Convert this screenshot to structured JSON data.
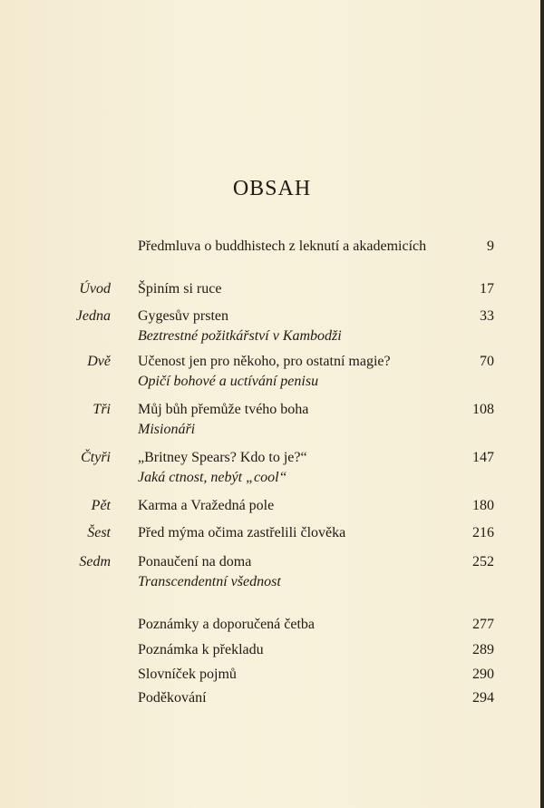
{
  "title": "OBSAH",
  "entries": [
    {
      "label": "",
      "title": "Předmluva o buddhistech z leknutí a akademicích",
      "subtitle": "",
      "page": "9"
    },
    {
      "label": "Úvod",
      "title": "Špiním si ruce",
      "subtitle": "",
      "page": "17"
    },
    {
      "label": "Jedna",
      "title": "Gygesův prsten",
      "subtitle": "Beztrestné požitkářství v Kambodži",
      "page": "33"
    },
    {
      "label": "Dvě",
      "title": "Učenost jen pro někoho, pro ostatní magie?",
      "subtitle": "Opičí bohové a uctívání penisu",
      "page": "70"
    },
    {
      "label": "Tři",
      "title": "Můj bůh přemůže tvého boha",
      "subtitle": "Misionáři",
      "page": "108"
    },
    {
      "label": "Čtyři",
      "title": "„Britney Spears? Kdo to je?“",
      "subtitle": "Jaká ctnost, nebýt „cool“",
      "page": "147"
    },
    {
      "label": "Pět",
      "title": "Karma a Vražedná pole",
      "subtitle": "",
      "page": "180"
    },
    {
      "label": "Šest",
      "title": "Před mýma očima zastřelili člověka",
      "subtitle": "",
      "page": "216"
    },
    {
      "label": "Sedm",
      "title": "Ponaučení na doma",
      "subtitle": "Transcendentní všednost",
      "page": "252"
    },
    {
      "label": "",
      "title": "Poznámky a doporučená četba",
      "subtitle": "",
      "page": "277"
    },
    {
      "label": "",
      "title": "Poznámka k překladu",
      "subtitle": "",
      "page": "289"
    },
    {
      "label": "",
      "title": "Slovníček pojmů",
      "subtitle": "",
      "page": "290"
    },
    {
      "label": "",
      "title": "Poděkování",
      "subtitle": "",
      "page": "294"
    }
  ]
}
